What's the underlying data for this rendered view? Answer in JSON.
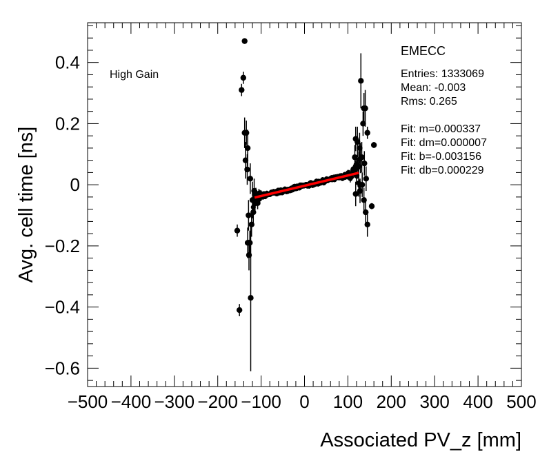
{
  "chart_data": {
    "type": "scatter",
    "title": "",
    "xlabel": "Associated PV_z [mm]",
    "ylabel": "Avg. cell time [ns]",
    "xlim": [
      -500,
      500
    ],
    "ylim": [
      -0.66,
      0.53
    ],
    "xticks": [
      -500,
      -400,
      -300,
      -200,
      -100,
      0,
      100,
      200,
      300,
      400,
      500
    ],
    "xtick_labels": [
      "−500",
      "−400",
      "−300",
      "−200",
      "−100",
      "0",
      "100",
      "200",
      "300",
      "400",
      "500"
    ],
    "yticks": [
      -0.6,
      -0.4,
      -0.2,
      0,
      0.2,
      0.4
    ],
    "ytick_labels": [
      "−0.6",
      "−0.4",
      "−0.2",
      "0",
      "0.2",
      "0.4"
    ],
    "annotation": "High Gain",
    "stats_box": {
      "title": "EMECC",
      "lines": [
        "Entries: 1333069",
        "Mean: -0.003",
        "Rms: 0.265",
        "Fit: m=0.000337",
        "Fit: dm=0.000007",
        "Fit: b=-0.003156",
        "Fit: db=0.000229"
      ]
    },
    "fit_line": {
      "name": "linear fit",
      "m": 0.000337,
      "b": -0.003156,
      "x_range": [
        -115,
        125
      ],
      "color": "#ff0000"
    },
    "outliers": [
      {
        "x": -138,
        "y": 0.47,
        "err": 0
      },
      {
        "x": -145,
        "y": 0.31,
        "err": 0.02
      },
      {
        "x": -141,
        "y": 0.35,
        "err": 0.02
      },
      {
        "x": -138,
        "y": 0.17,
        "err": 0.05
      },
      {
        "x": -134,
        "y": 0.17,
        "err": 0.04
      },
      {
        "x": -131,
        "y": 0.12,
        "err": 0.06
      },
      {
        "x": -136,
        "y": 0.08,
        "err": 0.06
      },
      {
        "x": -132,
        "y": 0.05,
        "err": 0.05
      },
      {
        "x": -155,
        "y": -0.15,
        "err": 0.02
      },
      {
        "x": -150,
        "y": -0.41,
        "err": 0.02
      },
      {
        "x": -124,
        "y": -0.37,
        "err": 0.24
      },
      {
        "x": -128,
        "y": -0.23,
        "err": 0.05
      },
      {
        "x": -131,
        "y": -0.19,
        "err": 0.05
      },
      {
        "x": -126,
        "y": -0.19,
        "err": 0.04
      },
      {
        "x": -129,
        "y": -0.1,
        "err": 0.05
      },
      {
        "x": -122,
        "y": -0.13,
        "err": 0.04
      },
      {
        "x": -118,
        "y": -0.09,
        "err": 0.04
      },
      {
        "x": -120,
        "y": -0.05,
        "err": 0.06
      },
      {
        "x": -125,
        "y": 0.02,
        "err": 0.05
      },
      {
        "x": -116,
        "y": -0.02,
        "err": 0.04
      },
      {
        "x": -112,
        "y": -0.04,
        "err": 0.03
      },
      {
        "x": 130,
        "y": 0.34,
        "err": 0.09
      },
      {
        "x": 140,
        "y": 0.25,
        "err": 0.06
      },
      {
        "x": 137,
        "y": 0.25,
        "err": 0.05
      },
      {
        "x": 135,
        "y": 0.2,
        "err": 0.04
      },
      {
        "x": 160,
        "y": 0.13,
        "err": 0.01
      },
      {
        "x": 145,
        "y": 0.17,
        "err": 0.02
      },
      {
        "x": 118,
        "y": 0.15,
        "err": 0.04
      },
      {
        "x": 122,
        "y": 0.14,
        "err": 0.05
      },
      {
        "x": 127,
        "y": 0.12,
        "err": 0.05
      },
      {
        "x": 132,
        "y": 0.09,
        "err": 0.05
      },
      {
        "x": 116,
        "y": 0.09,
        "err": 0.04
      },
      {
        "x": 125,
        "y": 0.06,
        "err": 0.05
      },
      {
        "x": 138,
        "y": 0.07,
        "err": 0.04
      },
      {
        "x": 142,
        "y": 0.02,
        "err": 0.04
      },
      {
        "x": 133,
        "y": 0.0,
        "err": 0.04
      },
      {
        "x": 128,
        "y": -0.02,
        "err": 0.04
      },
      {
        "x": 118,
        "y": -0.03,
        "err": 0.04
      },
      {
        "x": 137,
        "y": -0.05,
        "err": 0.04
      },
      {
        "x": 155,
        "y": -0.07,
        "err": 0.01
      },
      {
        "x": 141,
        "y": -0.09,
        "err": 0.04
      },
      {
        "x": 145,
        "y": -0.13,
        "err": 0.04
      },
      {
        "x": 120,
        "y": 0.03,
        "err": 0.03
      },
      {
        "x": -114,
        "y": -0.06,
        "err": 0.03
      },
      {
        "x": -108,
        "y": -0.06,
        "err": 0.02
      },
      {
        "x": -105,
        "y": -0.035,
        "err": 0.02
      }
    ]
  }
}
